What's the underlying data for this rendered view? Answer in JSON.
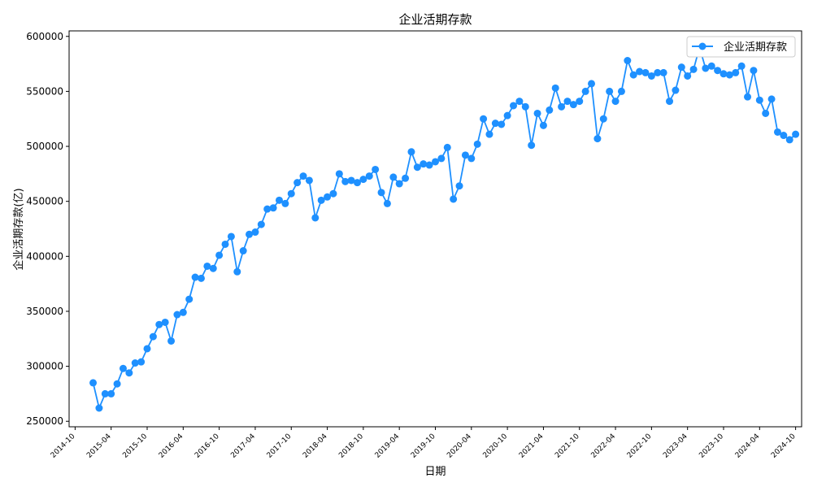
{
  "colors": {
    "series": "#1e90ff",
    "axis": "#000000",
    "background": "#ffffff"
  },
  "chart_data": {
    "type": "line",
    "title": "企业活期存款",
    "xlabel": "日期",
    "ylabel": "企业活期存款(亿)",
    "legend": {
      "placement": "top-right",
      "entries": [
        "企业活期存款"
      ]
    },
    "grid": false,
    "x_axis_range": [
      "2014-09",
      "2024-11"
    ],
    "ylim": [
      245000,
      605000
    ],
    "x_ticks": [
      "2014-10",
      "2015-04",
      "2015-10",
      "2016-04",
      "2016-10",
      "2017-04",
      "2017-10",
      "2018-04",
      "2018-10",
      "2019-04",
      "2019-10",
      "2020-04",
      "2020-10",
      "2021-04",
      "2021-10",
      "2022-04",
      "2022-10",
      "2023-04",
      "2023-10",
      "2024-04",
      "2024-10"
    ],
    "y_ticks": [
      "250000",
      "300000",
      "350000",
      "400000",
      "450000",
      "500000",
      "550000",
      "600000"
    ],
    "series": [
      {
        "name": "企业活期存款",
        "x": [
          "2015-01",
          "2015-02",
          "2015-03",
          "2015-04",
          "2015-05",
          "2015-06",
          "2015-07",
          "2015-08",
          "2015-09",
          "2015-10",
          "2015-11",
          "2015-12",
          "2016-01",
          "2016-02",
          "2016-03",
          "2016-04",
          "2016-05",
          "2016-06",
          "2016-07",
          "2016-08",
          "2016-09",
          "2016-10",
          "2016-11",
          "2016-12",
          "2017-01",
          "2017-02",
          "2017-03",
          "2017-04",
          "2017-05",
          "2017-06",
          "2017-07",
          "2017-08",
          "2017-09",
          "2017-10",
          "2017-11",
          "2017-12",
          "2018-01",
          "2018-02",
          "2018-03",
          "2018-04",
          "2018-05",
          "2018-06",
          "2018-07",
          "2018-08",
          "2018-09",
          "2018-10",
          "2018-11",
          "2018-12",
          "2019-01",
          "2019-02",
          "2019-03",
          "2019-04",
          "2019-05",
          "2019-06",
          "2019-07",
          "2019-08",
          "2019-09",
          "2019-10",
          "2019-11",
          "2019-12",
          "2020-01",
          "2020-02",
          "2020-03",
          "2020-04",
          "2020-05",
          "2020-06",
          "2020-07",
          "2020-08",
          "2020-09",
          "2020-10",
          "2020-11",
          "2020-12",
          "2021-01",
          "2021-02",
          "2021-03",
          "2021-04",
          "2021-05",
          "2021-06",
          "2021-07",
          "2021-08",
          "2021-09",
          "2021-10",
          "2021-11",
          "2021-12",
          "2022-01",
          "2022-02",
          "2022-03",
          "2022-04",
          "2022-05",
          "2022-06",
          "2022-07",
          "2022-08",
          "2022-09",
          "2022-10",
          "2022-11",
          "2022-12",
          "2023-01",
          "2023-02",
          "2023-03",
          "2023-04",
          "2023-05",
          "2023-06",
          "2023-07",
          "2023-08",
          "2023-09",
          "2023-10",
          "2023-11",
          "2023-12",
          "2024-01",
          "2024-02",
          "2024-03",
          "2024-04",
          "2024-05",
          "2024-06",
          "2024-07",
          "2024-08",
          "2024-09",
          "2024-10"
        ],
        "values": [
          285000,
          262000,
          275000,
          275000,
          284000,
          298000,
          294000,
          303000,
          304000,
          316000,
          327000,
          338000,
          340000,
          323000,
          347000,
          349000,
          361000,
          381000,
          380000,
          391000,
          389000,
          401000,
          411000,
          418000,
          386000,
          405000,
          420000,
          422000,
          429000,
          443000,
          444000,
          451000,
          448000,
          457000,
          467000,
          473000,
          469000,
          435000,
          451000,
          454000,
          457000,
          475000,
          468000,
          469000,
          467000,
          470000,
          473000,
          479000,
          458000,
          448000,
          472000,
          466000,
          471000,
          495000,
          481000,
          484000,
          483000,
          486000,
          489000,
          499000,
          452000,
          464000,
          492000,
          489000,
          502000,
          525000,
          511000,
          521000,
          520000,
          528000,
          537000,
          541000,
          536000,
          501000,
          530000,
          519000,
          533000,
          553000,
          536000,
          541000,
          538000,
          541000,
          550000,
          557000,
          507000,
          525000,
          550000,
          541000,
          550000,
          578000,
          565000,
          568000,
          567000,
          564000,
          567000,
          567000,
          541000,
          551000,
          572000,
          564000,
          570000,
          590000,
          571000,
          573000,
          569000,
          566000,
          565000,
          567000,
          573000,
          545000,
          569000,
          542000,
          530000,
          543000,
          513000,
          510000,
          506000,
          511000
        ]
      }
    ]
  }
}
